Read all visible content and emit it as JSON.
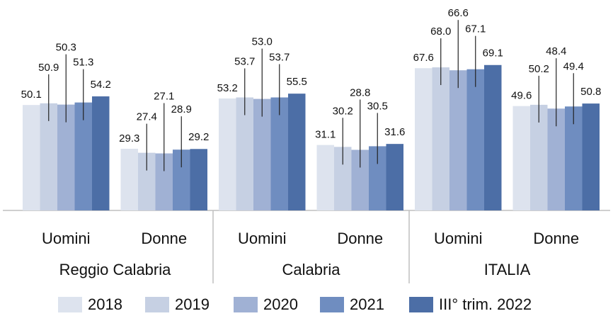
{
  "chart_data": {
    "type": "bar",
    "categories": [
      "Uomini",
      "Donne",
      "Uomini",
      "Donne",
      "Uomini",
      "Donne"
    ],
    "groups": [
      "Reggio Calabria",
      "Calabria",
      "ITALIA"
    ],
    "ylim": [
      0,
      100
    ],
    "series": [
      {
        "name": "2018",
        "color": "#dde3ee",
        "values": [
          50.1,
          29.3,
          53.2,
          31.1,
          67.6,
          49.6
        ],
        "value_labels": [
          "50.1",
          "29.3",
          "53.2",
          "31.1",
          "67.6",
          "49.6"
        ]
      },
      {
        "name": "2019",
        "color": "#c6d0e3",
        "values": [
          50.9,
          27.4,
          53.7,
          30.2,
          68.0,
          50.2
        ],
        "value_labels": [
          "50.9",
          "27.4",
          "53.7",
          "30.2",
          "68.0",
          "50.2"
        ]
      },
      {
        "name": "2020",
        "color": "#a0b1d4",
        "values": [
          50.3,
          27.1,
          53.0,
          28.8,
          66.6,
          48.4
        ],
        "value_labels": [
          "50.3",
          "27.1",
          "53.0",
          "28.8",
          "66.6",
          "48.4"
        ]
      },
      {
        "name": "2021",
        "color": "#6f8dc0",
        "values": [
          51.3,
          28.9,
          53.7,
          30.5,
          67.1,
          49.4
        ],
        "value_labels": [
          "51.3",
          "28.9",
          "53.7",
          "30.5",
          "67.1",
          "49.4"
        ]
      },
      {
        "name": "III° trim. 2022",
        "color": "#4c6ea6",
        "values": [
          54.2,
          29.2,
          55.5,
          31.6,
          69.1,
          50.8
        ],
        "value_labels": [
          "54.2",
          "29.2",
          "55.5",
          "31.6",
          "69.1",
          "50.8"
        ]
      }
    ]
  }
}
